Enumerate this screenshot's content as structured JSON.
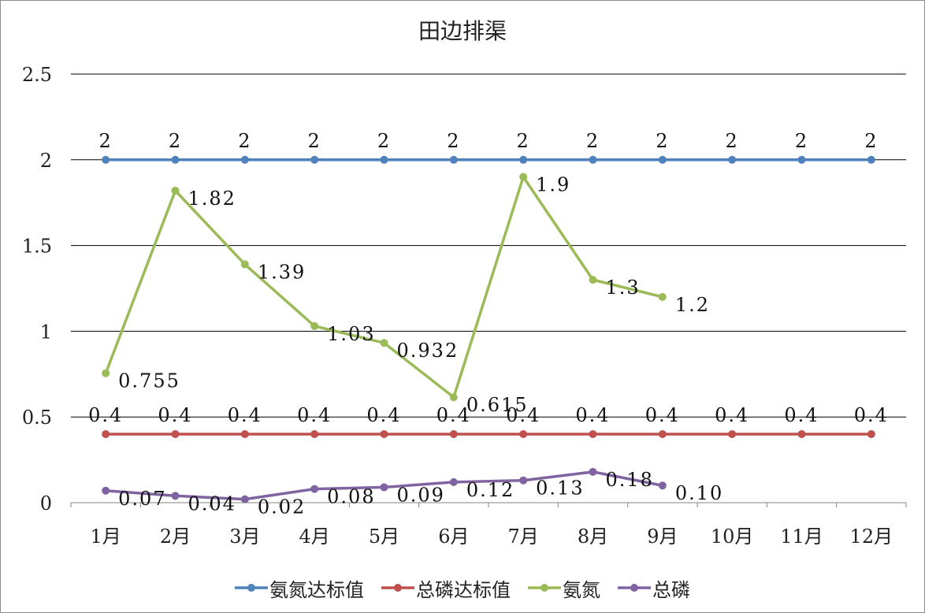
{
  "chart_data": {
    "type": "line",
    "title": "田边排渠",
    "xlabel": "",
    "ylabel": "",
    "ylim": [
      0,
      2.5
    ],
    "yticks": [
      "0",
      "0.5",
      "1",
      "1.5",
      "2",
      "2.5"
    ],
    "categories": [
      "1月",
      "2月",
      "3月",
      "4月",
      "5月",
      "6月",
      "7月",
      "8月",
      "9月",
      "10月",
      "11月",
      "12月"
    ],
    "grid": true,
    "legend_position": "bottom",
    "series": [
      {
        "name": "氨氮达标值",
        "color": "#4f81bd",
        "values": [
          2,
          2,
          2,
          2,
          2,
          2,
          2,
          2,
          2,
          2,
          2,
          2
        ],
        "labels": [
          "2",
          "2",
          "2",
          "2",
          "2",
          "2",
          "2",
          "2",
          "2",
          "2",
          "2",
          "2"
        ]
      },
      {
        "name": "总磷达标值",
        "color": "#c0504d",
        "values": [
          0.4,
          0.4,
          0.4,
          0.4,
          0.4,
          0.4,
          0.4,
          0.4,
          0.4,
          0.4,
          0.4,
          0.4
        ],
        "labels": [
          "0.4",
          "0.4",
          "0.4",
          "0.4",
          "0.4",
          "0.4",
          "0.4",
          "0.4",
          "0.4",
          "0.4",
          "0.4",
          "0.4"
        ]
      },
      {
        "name": "氨氮",
        "color": "#9bbb59",
        "values": [
          0.755,
          1.82,
          1.39,
          1.03,
          0.932,
          0.615,
          1.9,
          1.3,
          1.2,
          null,
          null,
          null
        ],
        "labels": [
          "0.755",
          "1.82",
          "1.39",
          "1.03",
          "0.932",
          "0.615",
          "1.9",
          "1.3",
          "1.2",
          null,
          null,
          null
        ]
      },
      {
        "name": "总磷",
        "color": "#8064a2",
        "values": [
          0.07,
          0.04,
          0.02,
          0.08,
          0.09,
          0.12,
          0.13,
          0.18,
          0.1,
          null,
          null,
          null
        ],
        "labels": [
          "0.07",
          "0.04",
          "0.02",
          "0.08",
          "0.09",
          "0.12",
          "0.13",
          "0.18",
          "0.10",
          null,
          null,
          null
        ]
      }
    ]
  }
}
